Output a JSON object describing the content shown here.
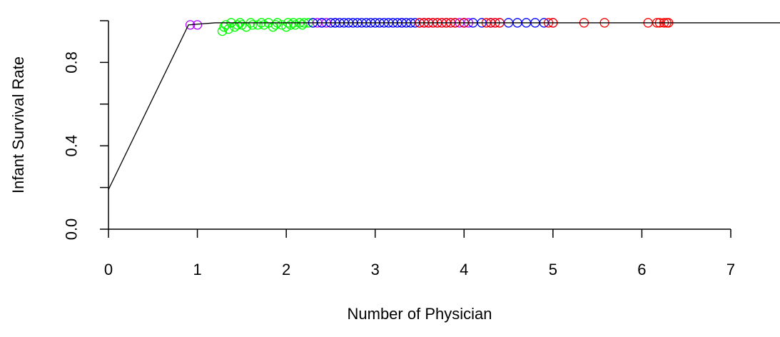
{
  "chart_data": {
    "type": "scatter",
    "title": "",
    "xlabel": "Number of Physician",
    "ylabel": "Infant Survival Rate",
    "xlim": [
      0,
      7.6
    ],
    "ylim": [
      0,
      1
    ],
    "x_ticks": [
      0,
      1,
      2,
      3,
      4,
      5,
      6,
      7
    ],
    "x_tick_labels": [
      "0",
      "1",
      "2",
      "3",
      "4",
      "5",
      "6",
      "7"
    ],
    "y_ticks": [
      0.0,
      0.4,
      0.8
    ],
    "y_tick_labels": [
      "0.0",
      "0.4",
      "0.8"
    ],
    "grid": false,
    "legend": "none",
    "fit_line": {
      "x": [
        0,
        0.9,
        1.2,
        7.6
      ],
      "y": [
        0.19,
        0.98,
        0.99,
        0.99
      ],
      "color": "#000000"
    },
    "series": [
      {
        "color": "#00ff00",
        "marker": "open-circle",
        "x": [
          1.28,
          1.3,
          1.32,
          1.35,
          1.38,
          1.42,
          1.45,
          1.48,
          1.5,
          1.55,
          1.6,
          1.62,
          1.68,
          1.72,
          1.75,
          1.8,
          1.85,
          1.88,
          1.9,
          1.95,
          2.0,
          2.02,
          2.05,
          2.08,
          2.1,
          2.15,
          2.18,
          2.2,
          2.25,
          2.3
        ],
        "y": [
          0.95,
          0.97,
          0.98,
          0.96,
          0.99,
          0.97,
          0.98,
          0.99,
          0.98,
          0.97,
          0.99,
          0.98,
          0.98,
          0.99,
          0.98,
          0.99,
          0.97,
          0.98,
          0.99,
          0.98,
          0.97,
          0.99,
          0.98,
          0.99,
          0.98,
          0.99,
          0.98,
          0.99,
          0.99,
          0.99
        ]
      },
      {
        "color": "#aa00ff",
        "marker": "open-circle",
        "x": [
          0.92,
          1.0,
          2.35,
          2.4,
          2.45,
          2.55,
          3.3,
          3.55,
          3.6,
          3.75,
          3.85,
          3.95,
          4.0,
          4.05,
          4.3,
          4.35
        ],
        "y": [
          0.98,
          0.98,
          0.99,
          0.99,
          0.99,
          0.99,
          0.99,
          0.99,
          0.99,
          0.99,
          0.99,
          0.99,
          0.99,
          0.99,
          0.99,
          0.99
        ]
      },
      {
        "color": "#0000ff",
        "marker": "open-circle",
        "x": [
          2.3,
          2.4,
          2.5,
          2.55,
          2.6,
          2.65,
          2.7,
          2.75,
          2.8,
          2.85,
          2.9,
          2.95,
          3.0,
          3.05,
          3.1,
          3.15,
          3.2,
          3.25,
          3.3,
          3.35,
          3.4,
          3.45,
          3.5,
          3.55,
          3.6,
          3.65,
          3.7,
          3.8,
          3.9,
          4.0,
          4.1,
          4.2,
          4.3,
          4.4,
          4.5,
          4.6,
          4.7,
          4.8,
          4.9,
          5.0
        ],
        "y": [
          0.99,
          0.99,
          0.99,
          0.99,
          0.99,
          0.99,
          0.99,
          0.99,
          0.99,
          0.99,
          0.99,
          0.99,
          0.99,
          0.99,
          0.99,
          0.99,
          0.99,
          0.99,
          0.99,
          0.99,
          0.99,
          0.99,
          0.99,
          0.99,
          0.99,
          0.99,
          0.99,
          0.99,
          0.99,
          0.99,
          0.99,
          0.99,
          0.99,
          0.99,
          0.99,
          0.99,
          0.99,
          0.99,
          0.99,
          0.99
        ]
      },
      {
        "color": "#ff0000",
        "marker": "open-circle",
        "x": [
          3.5,
          3.55,
          3.6,
          3.65,
          3.7,
          3.75,
          3.8,
          3.85,
          3.9,
          4.0,
          4.25,
          4.3,
          4.35,
          4.4,
          4.95,
          5.0,
          5.35,
          5.58,
          6.07,
          6.17,
          6.2,
          6.25,
          6.28,
          6.3
        ],
        "y": [
          0.99,
          0.99,
          0.99,
          0.99,
          0.99,
          0.99,
          0.99,
          0.99,
          0.99,
          0.99,
          0.99,
          0.99,
          0.99,
          0.99,
          0.99,
          0.99,
          0.99,
          0.99,
          0.99,
          0.99,
          0.99,
          0.99,
          0.99,
          0.99
        ]
      }
    ]
  }
}
